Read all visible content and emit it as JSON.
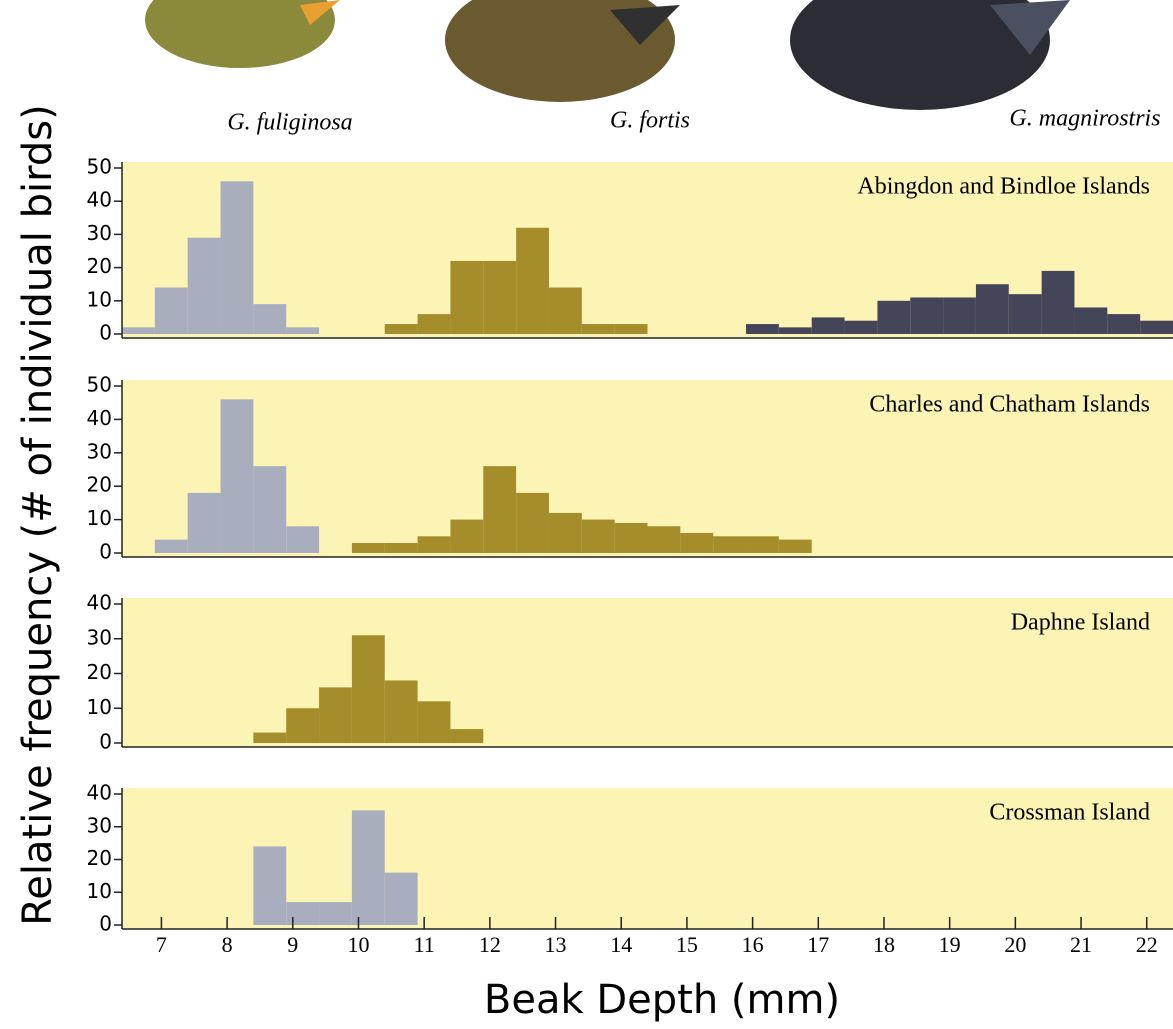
{
  "header": {
    "species": [
      "G. fuliginosa",
      "G. fortis",
      "G. magnirostris"
    ]
  },
  "ylabel": "Relative frequency (# of individual birds)",
  "chart_data": [
    {
      "type": "histogram",
      "title": "Abingdon and Bindloe Islands",
      "xlim": [
        6.4,
        22.4
      ],
      "ylim": [
        0,
        50
      ],
      "yticks": [
        0,
        10,
        20,
        30,
        40,
        50
      ],
      "series": [
        {
          "color": "#a9aebf",
          "bins": [
            6.4,
            6.9,
            7.4,
            7.9,
            8.4,
            8.9,
            9.4
          ],
          "values": [
            2,
            14,
            29,
            46,
            9,
            2
          ]
        },
        {
          "color": "#a48d2a",
          "bins": [
            10.4,
            10.9,
            11.4,
            11.9,
            12.4,
            12.9,
            13.4,
            13.9,
            14.4
          ],
          "values": [
            3,
            6,
            22,
            22,
            32,
            14,
            3,
            3
          ]
        },
        {
          "color": "#45455a",
          "bins": [
            15.9,
            16.4,
            16.9,
            17.4,
            17.9,
            18.4,
            18.9,
            19.4,
            19.9,
            20.4,
            20.9,
            21.4,
            21.9,
            22.4
          ],
          "values": [
            3,
            2,
            5,
            4,
            10,
            11,
            11,
            15,
            12,
            19,
            8,
            6,
            4
          ]
        }
      ]
    },
    {
      "type": "histogram",
      "title": "Charles and Chatham Islands",
      "xlim": [
        6.4,
        22.4
      ],
      "ylim": [
        0,
        50
      ],
      "yticks": [
        0,
        10,
        20,
        30,
        40,
        50
      ],
      "series": [
        {
          "color": "#a9aebf",
          "bins": [
            6.9,
            7.4,
            7.9,
            8.4,
            8.9,
            9.4
          ],
          "values": [
            4,
            18,
            46,
            26,
            8
          ]
        },
        {
          "color": "#a48d2a",
          "bins": [
            9.9,
            10.4,
            10.9,
            11.4,
            11.9,
            12.4,
            12.9,
            13.4,
            13.9,
            14.4,
            14.9,
            15.4,
            15.9,
            16.4,
            16.9
          ],
          "values": [
            3,
            3,
            5,
            10,
            26,
            18,
            12,
            10,
            9,
            8,
            6,
            5,
            5,
            4
          ]
        }
      ]
    },
    {
      "type": "histogram",
      "title": "Daphne Island",
      "xlim": [
        6.4,
        22.4
      ],
      "ylim": [
        0,
        40
      ],
      "yticks": [
        0,
        10,
        20,
        30,
        40
      ],
      "series": [
        {
          "color": "#a48d2a",
          "bins": [
            8.4,
            8.9,
            9.4,
            9.9,
            10.4,
            10.9,
            11.4,
            11.9
          ],
          "values": [
            3,
            10,
            16,
            31,
            18,
            12,
            4
          ]
        }
      ]
    },
    {
      "type": "histogram",
      "title": "Crossman Island",
      "xlim": [
        6.4,
        22.4
      ],
      "ylim": [
        0,
        40
      ],
      "yticks": [
        0,
        10,
        20,
        30,
        40
      ],
      "xticks": [
        7,
        8,
        9,
        10,
        11,
        12,
        13,
        14,
        15,
        16,
        17,
        18,
        19,
        20,
        21,
        22
      ],
      "xlabel": "Beak Depth (mm)",
      "series": [
        {
          "color": "#a9aebf",
          "bins": [
            8.4,
            8.9,
            9.4,
            9.9,
            10.4,
            10.9
          ],
          "values": [
            24,
            7,
            7,
            35,
            16
          ]
        }
      ]
    }
  ]
}
